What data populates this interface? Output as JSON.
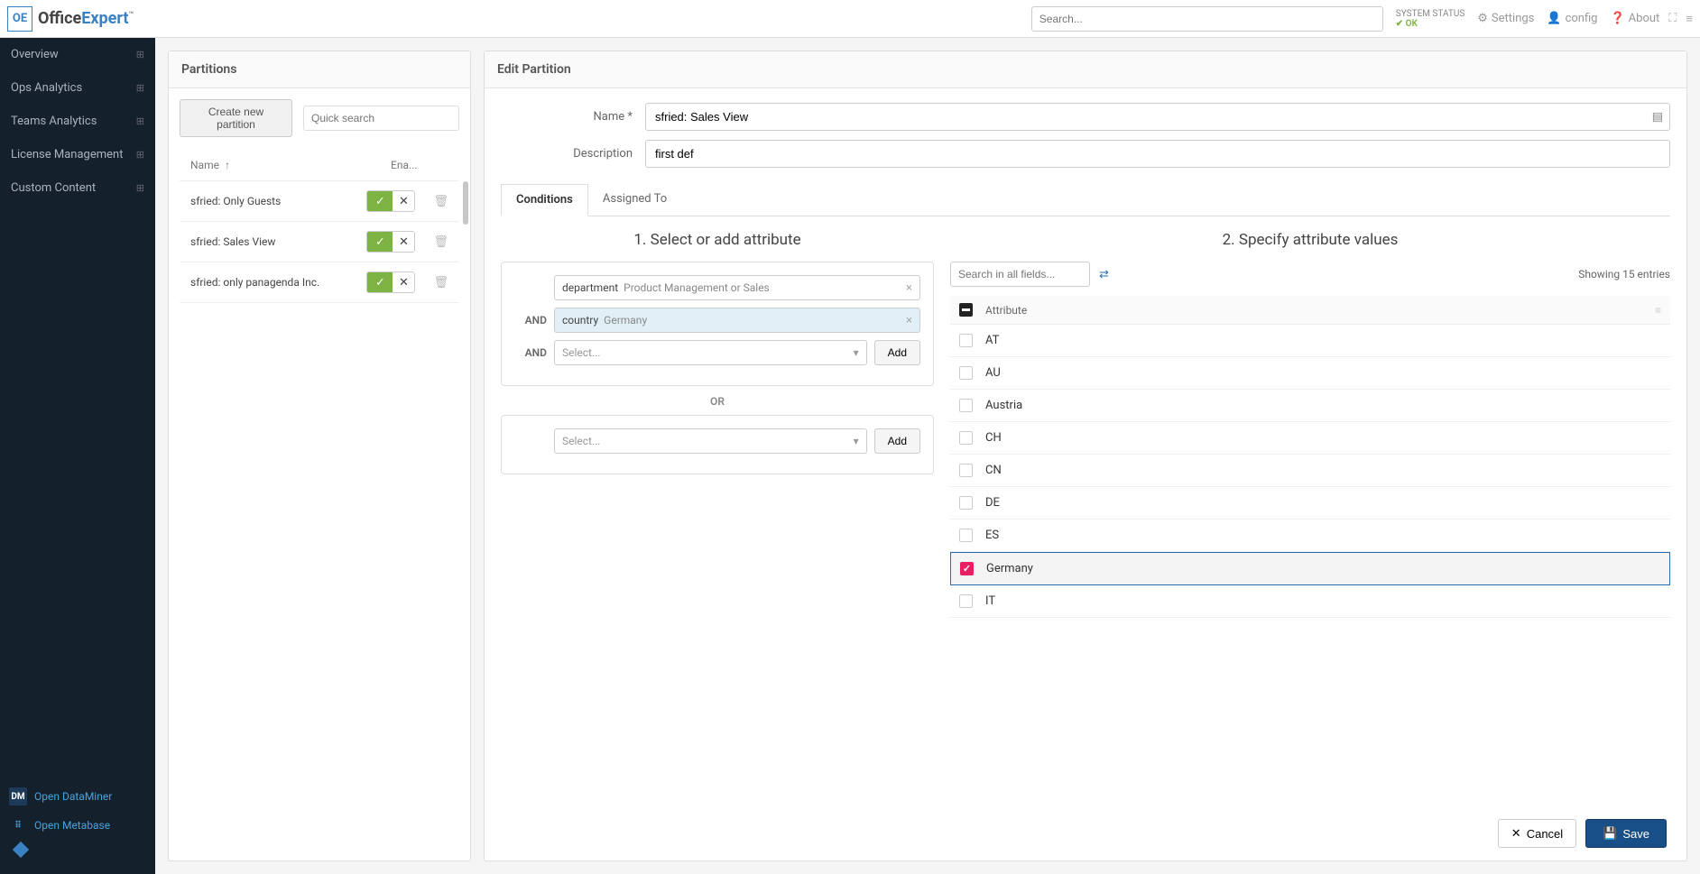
{
  "brand": {
    "badge": "OE",
    "name_a": "Office",
    "name_b": "Expert",
    "tm": "™"
  },
  "topbar": {
    "search_placeholder": "Search...",
    "status_label": "SYSTEM STATUS",
    "status_value": "OK",
    "settings": "Settings",
    "config": "config",
    "about": "About"
  },
  "sidebar": {
    "items": [
      {
        "label": "Overview"
      },
      {
        "label": "Ops Analytics"
      },
      {
        "label": "Teams Analytics"
      },
      {
        "label": "License Management"
      },
      {
        "label": "Custom Content"
      }
    ],
    "open_dataminer": "Open DataMiner",
    "open_metabase": "Open Metabase"
  },
  "partitions": {
    "header": "Partitions",
    "create_btn": "Create new partition",
    "quick_search_placeholder": "Quick search",
    "col_name": "Name",
    "col_enabled": "Ena...",
    "rows": [
      {
        "name": "sfried: Only Guests"
      },
      {
        "name": "sfried: Sales View"
      },
      {
        "name": "sfried: only panagenda Inc."
      }
    ]
  },
  "edit": {
    "header": "Edit Partition",
    "name_label": "Name *",
    "name_value": "sfried: Sales View",
    "desc_label": "Description",
    "desc_value": "first def",
    "tabs": {
      "conditions": "Conditions",
      "assigned": "Assigned To"
    },
    "step1": "1. Select or add attribute",
    "step2": "2. Specify attribute values",
    "and": "AND",
    "or": "OR",
    "select_placeholder": "Select...",
    "add": "Add",
    "cond1": {
      "attr": "department",
      "val": "Product Management or Sales"
    },
    "cond2": {
      "attr": "country",
      "val": "Germany"
    },
    "search_fields_placeholder": "Search in all fields...",
    "showing": "Showing 15 entries",
    "attr_col": "Attribute",
    "values": [
      {
        "label": "AT",
        "checked": false
      },
      {
        "label": "AU",
        "checked": false
      },
      {
        "label": "Austria",
        "checked": false
      },
      {
        "label": "CH",
        "checked": false
      },
      {
        "label": "CN",
        "checked": false
      },
      {
        "label": "DE",
        "checked": false
      },
      {
        "label": "ES",
        "checked": false
      },
      {
        "label": "Germany",
        "checked": true
      },
      {
        "label": "IT",
        "checked": false
      }
    ],
    "cancel": "Cancel",
    "save": "Save"
  }
}
